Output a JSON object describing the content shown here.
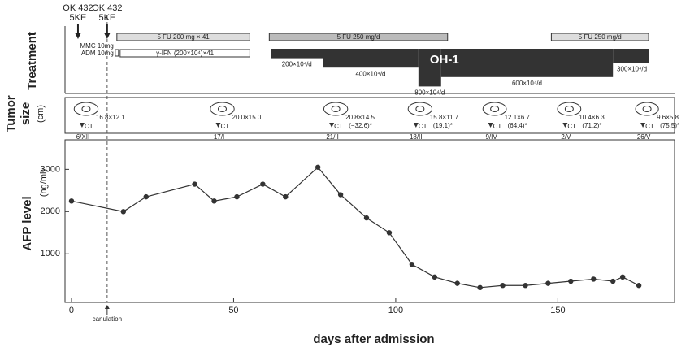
{
  "chart_data": {
    "type": "line",
    "xlabel": "days after admission",
    "ylabel": "AFP level",
    "yunit": "(ng/ml)",
    "x": [
      0,
      16,
      23,
      38,
      44,
      51,
      59,
      66,
      76,
      83,
      91,
      98,
      105,
      112,
      119,
      126,
      133,
      140,
      147,
      154,
      161,
      167,
      170,
      175
    ],
    "values": [
      2250,
      2000,
      2350,
      2650,
      2250,
      2350,
      2650,
      2350,
      3050,
      2400,
      1850,
      1500,
      750,
      450,
      300,
      200,
      250,
      250,
      300,
      350,
      400,
      350,
      450,
      250
    ],
    "color": "#333333",
    "xlim": [
      -2,
      186
    ],
    "ylim": [
      -150,
      3700
    ],
    "xticks": [
      0,
      50,
      100,
      150
    ],
    "yticks": [
      1000,
      2000,
      3000
    ],
    "annotations": [
      {
        "text": "canulation",
        "x": 11
      }
    ]
  },
  "treatment": {
    "title": "Treatment",
    "markers": [
      {
        "label": "OK 432",
        "sub": "5KE",
        "day": 2
      },
      {
        "label": "OK 432",
        "sub": "5KE",
        "day": 11
      }
    ],
    "premed": [
      "MMC 10mg",
      "ADM 10mg"
    ],
    "premed_day": 14,
    "chemo": [
      {
        "label": "5 FU 200 mg × 41",
        "start": 14,
        "end": 55,
        "color": "#dddddd"
      },
      {
        "label": "5 FU 250 mg/d",
        "start": 61,
        "end": 116,
        "color": "#bbbbbb"
      },
      {
        "label": "5 FU 250 mg/d",
        "start": 148,
        "end": 178,
        "color": "#dddddd"
      }
    ],
    "ifn": [
      {
        "label": "γ-IFN (200×10⁴)×41",
        "start": 15,
        "end": 55
      }
    ],
    "oh1": {
      "label": "OH-1",
      "color": "#333333",
      "steps": [
        {
          "label": "200×10⁴/d",
          "dose": 200,
          "start": 61.5,
          "end": 77.5
        },
        {
          "label": "400×10⁴/d",
          "dose": 400,
          "start": 77.5,
          "end": 107
        },
        {
          "label": "800×10⁴/d",
          "dose": 800,
          "start": 107,
          "end": 114
        },
        {
          "label": "600×10⁴/d",
          "dose": 600,
          "start": 114,
          "end": 167
        },
        {
          "label": "300×10⁴/d",
          "dose": 300,
          "start": 167,
          "end": 178
        }
      ]
    }
  },
  "tumor": {
    "title_lines": [
      "Tumor",
      "size"
    ],
    "unit": "(cm)",
    "ct_label": "CT",
    "scans": [
      {
        "date": "6/XII",
        "size": "16.8×12.1",
        "day": 3
      },
      {
        "date": "17/I",
        "size": "20.0×15.0",
        "day": 45
      },
      {
        "date": "21/II",
        "size": "20.8×14.5",
        "change": "(−32.6)*",
        "day": 80
      },
      {
        "date": "18/III",
        "size": "15.8×11.7",
        "change": "(19.1)*",
        "day": 106
      },
      {
        "date": "9/IV",
        "size": "12.1×6.7",
        "change": "(64.4)*",
        "day": 129
      },
      {
        "date": "2/V",
        "size": "10.4×6.3",
        "change": "(71.2)*",
        "day": 152
      },
      {
        "date": "26/V",
        "size": "9.6×5.8",
        "change": "(75.5)*",
        "day": 176
      }
    ]
  }
}
